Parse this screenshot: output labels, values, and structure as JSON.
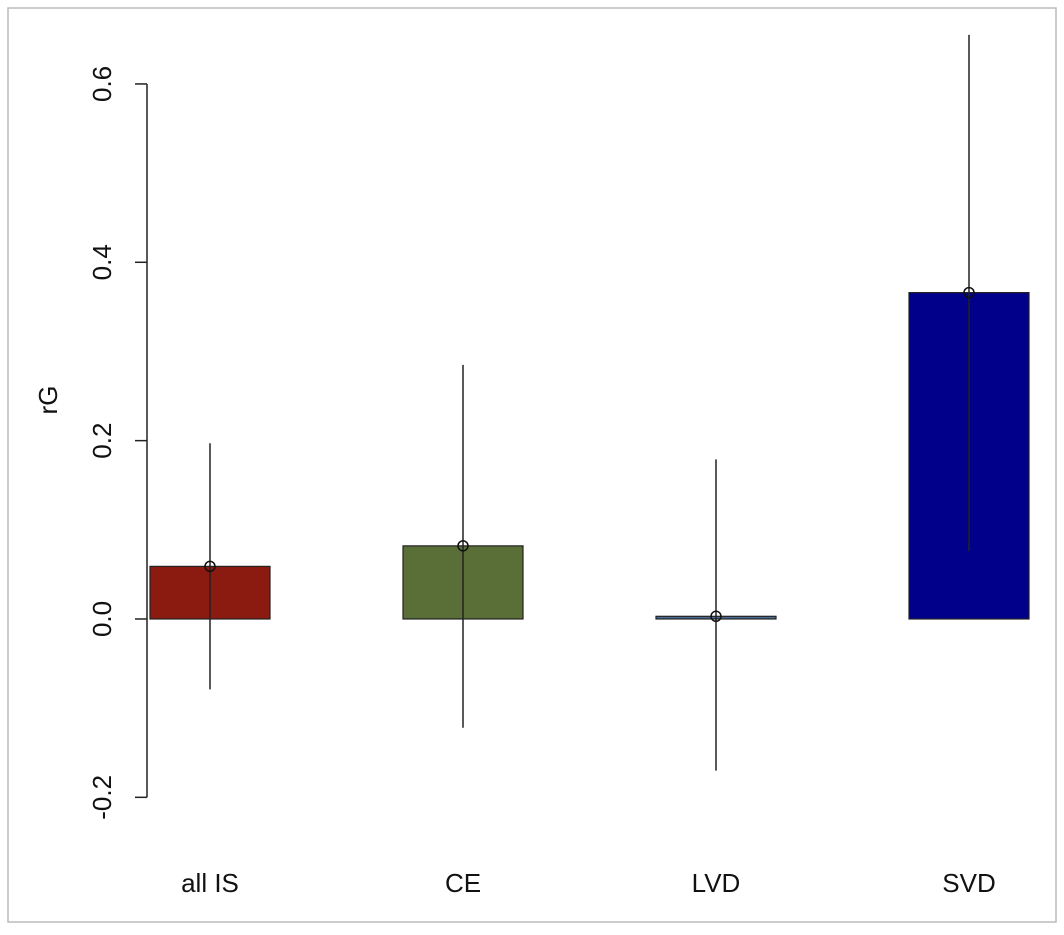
{
  "chart_data": {
    "type": "bar",
    "y_label": "rG",
    "categories": [
      "all IS",
      "CE",
      "LVD",
      "SVD"
    ],
    "values": [
      0.059,
      0.082,
      0.003,
      0.366
    ],
    "lower": [
      -0.079,
      -0.122,
      -0.17,
      0.076
    ],
    "upper": [
      0.197,
      0.285,
      0.179,
      0.655
    ],
    "colors": [
      "#8b1a10",
      "#5a6e37",
      "#4a6a90",
      "#00008b"
    ],
    "ylim": [
      -0.24,
      0.68
    ],
    "yticks": [
      -0.2,
      {
        "value": 0,
        "label": "0.0"
      },
      0.2,
      0.4,
      0.6
    ]
  }
}
